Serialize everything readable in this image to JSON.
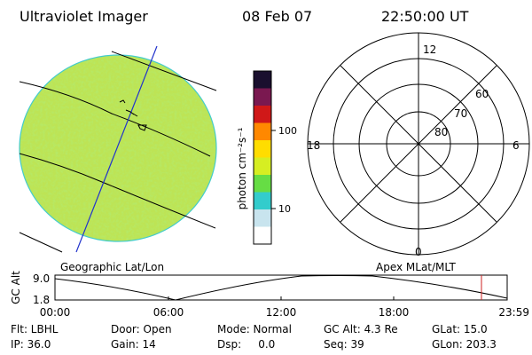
{
  "header": {
    "instrument": "Ultraviolet Imager",
    "date": "08 Feb 07",
    "time": "22:50:00 UT"
  },
  "colorbar": {
    "unit_label": "photon cm⁻²s⁻¹",
    "tick_labels": [
      "100",
      "10"
    ],
    "colors": [
      "#1a0f2e",
      "#7a1850",
      "#d01818",
      "#ff8800",
      "#ffdd00",
      "#d6ee22",
      "#66dd44",
      "#33cccc",
      "#c8e4ee",
      "#ffffff"
    ]
  },
  "globe_panel": {
    "caption": "Geographic Lat/Lon",
    "fill_color": "#bde455"
  },
  "polar_panel": {
    "caption": "Apex MLat/MLT",
    "mlt_labels": {
      "top": "12",
      "left": "18",
      "right": "6",
      "bottom": "0"
    },
    "mlat_labels": [
      "60",
      "70",
      "80"
    ]
  },
  "altitude_plot": {
    "axis_title": "GC Alt",
    "y_ticks": [
      "9.0",
      "1.8"
    ],
    "x_ticks": [
      "00:00",
      "06:00",
      "12:00",
      "18:00",
      "23:59"
    ],
    "current_marker_color": "#cc2222"
  },
  "status": {
    "filter": "Flt: LBHL",
    "door": "Door: Open",
    "mode": "Mode: Normal",
    "gc_alt": "GC Alt: 4.3 Re",
    "glat": "GLat:  15.0",
    "ip": "IP: 36.0",
    "gain": "Gain: 14",
    "dsp": "Dsp:     0.0",
    "seq": "Seq: 39",
    "glon": "GLon: 203.3"
  }
}
